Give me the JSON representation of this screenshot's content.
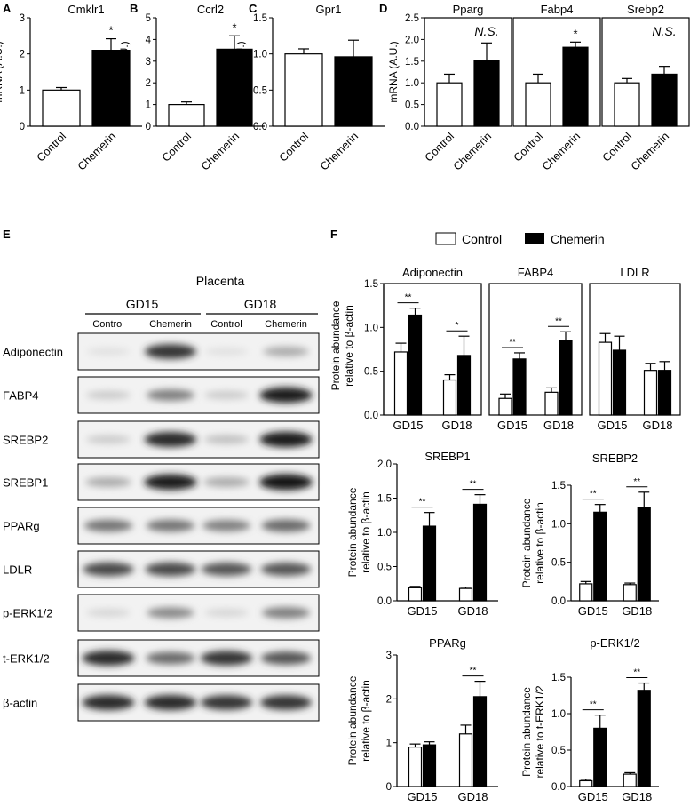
{
  "panel_letters": {
    "A": "A",
    "B": "B",
    "C": "C",
    "D": "D",
    "E": "E",
    "F": "F"
  },
  "colors": {
    "control": "#ffffff",
    "chemerin": "#000000",
    "axis": "#000000"
  },
  "legend": {
    "control": "Control",
    "chemerin": "Chemerin"
  },
  "blot": {
    "title": "Placenta",
    "groups": [
      "GD15",
      "GD18"
    ],
    "lanes": [
      "Control",
      "Chemerin",
      "Control",
      "Chemerin"
    ],
    "rows": [
      {
        "label": "Adiponectin",
        "bands": [
          0.05,
          0.85,
          0.05,
          0.3
        ]
      },
      {
        "label": "FABP4",
        "bands": [
          0.15,
          0.5,
          0.15,
          0.95
        ]
      },
      {
        "label": "SREBP2",
        "bands": [
          0.15,
          0.9,
          0.2,
          0.95
        ]
      },
      {
        "label": "SREBP1",
        "bands": [
          0.3,
          0.95,
          0.3,
          1.0
        ]
      },
      {
        "label": "PPARg",
        "bands": [
          0.55,
          0.55,
          0.5,
          0.6
        ]
      },
      {
        "label": "LDLR",
        "bands": [
          0.75,
          0.75,
          0.7,
          0.7
        ]
      },
      {
        "label": "p-ERK1/2",
        "bands": [
          0.1,
          0.45,
          0.1,
          0.5
        ]
      },
      {
        "label": "t-ERK1/2",
        "bands": [
          0.9,
          0.6,
          0.85,
          0.7
        ]
      },
      {
        "label": "β-actin",
        "bands": [
          0.9,
          0.9,
          0.85,
          0.85
        ]
      }
    ]
  },
  "chart_data": [
    {
      "id": "A",
      "type": "bar",
      "title": "Cmklr1",
      "ylabel": "mRNA (A.U.)",
      "ylim": [
        0,
        3
      ],
      "yticks": [
        0,
        1,
        2,
        3
      ],
      "categories": [
        "Control",
        "Chemerin"
      ],
      "values": [
        1.0,
        2.1
      ],
      "errors": [
        0.07,
        0.32
      ],
      "annotations": [
        "",
        "*"
      ]
    },
    {
      "id": "B",
      "type": "bar",
      "title": "Ccrl2",
      "ylabel": "mRNA (A.U.)",
      "ylim": [
        0,
        5
      ],
      "yticks": [
        0,
        1,
        2,
        3,
        4,
        5
      ],
      "categories": [
        "Control",
        "Chemerin"
      ],
      "values": [
        1.0,
        3.55
      ],
      "errors": [
        0.12,
        0.62
      ],
      "annotations": [
        "",
        "*"
      ]
    },
    {
      "id": "C",
      "type": "bar",
      "title": "Gpr1",
      "ylabel": "mRNA (A.U.)",
      "ylim": [
        0,
        1.5
      ],
      "yticks": [
        "0.0",
        "0.5",
        "1.0",
        "1.5"
      ],
      "categories": [
        "Control",
        "Chemerin"
      ],
      "values": [
        1.0,
        0.96
      ],
      "errors": [
        0.07,
        0.23
      ],
      "annotations": [
        "",
        ""
      ]
    },
    {
      "id": "D",
      "type": "bar",
      "ylabel": "mRNA (A.U.)",
      "ylim": [
        0,
        2.5
      ],
      "yticks": [
        "0.0",
        "0.5",
        "1.0",
        "1.5",
        "2.0",
        "2.5"
      ],
      "categories": [
        "Control",
        "Chemerin"
      ],
      "subplots": [
        {
          "title": "Pparg",
          "values": [
            1.0,
            1.52
          ],
          "errors": [
            0.2,
            0.4
          ],
          "annotation": "N.S."
        },
        {
          "title": "Fabp4",
          "values": [
            1.0,
            1.82
          ],
          "errors": [
            0.2,
            0.12
          ],
          "annotation": "*"
        },
        {
          "title": "Srebp2",
          "values": [
            1.0,
            1.2
          ],
          "errors": [
            0.1,
            0.18
          ],
          "annotation": "N.S."
        }
      ]
    },
    {
      "id": "F1",
      "type": "bar",
      "ylabel": "Protein abundance relative to β-actin",
      "ylim": [
        0,
        1.5
      ],
      "yticks": [
        "0.0",
        "0.5",
        "1.0",
        "1.5"
      ],
      "categories": [
        "GD15",
        "GD18"
      ],
      "subplots": [
        {
          "title": "Adiponectin",
          "control": [
            0.72,
            0.4
          ],
          "control_err": [
            0.1,
            0.06
          ],
          "chemerin": [
            1.14,
            0.68
          ],
          "chemerin_err": [
            0.08,
            0.22
          ],
          "sig": [
            "**",
            "*"
          ]
        },
        {
          "title": "FABP4",
          "control": [
            0.19,
            0.26
          ],
          "control_err": [
            0.05,
            0.05
          ],
          "chemerin": [
            0.64,
            0.85
          ],
          "chemerin_err": [
            0.07,
            0.1
          ],
          "sig": [
            "**",
            "**"
          ]
        },
        {
          "title": "LDLR",
          "control": [
            0.83,
            0.51
          ],
          "control_err": [
            0.1,
            0.08
          ],
          "chemerin": [
            0.74,
            0.51
          ],
          "chemerin_err": [
            0.16,
            0.1
          ],
          "sig": [
            "",
            ""
          ]
        }
      ]
    },
    {
      "id": "F2",
      "type": "bar",
      "title": "SREBP1",
      "ylabel": "Protein abundance relative to β-actin",
      "ylim": [
        0,
        2.0
      ],
      "yticks": [
        "0.0",
        "0.5",
        "1.0",
        "1.5",
        "2.0"
      ],
      "categories": [
        "GD15",
        "GD18"
      ],
      "control": [
        0.19,
        0.18
      ],
      "control_err": [
        0.02,
        0.02
      ],
      "chemerin": [
        1.09,
        1.41
      ],
      "chemerin_err": [
        0.2,
        0.14
      ],
      "sig": [
        "**",
        "**"
      ]
    },
    {
      "id": "F3",
      "type": "bar",
      "title": "SREBP2",
      "ylabel": "Protein abundance relative to β-actin",
      "ylim": [
        0,
        1.5
      ],
      "yticks": [
        "0.0",
        "0.5",
        "1.0",
        "1.5"
      ],
      "categories": [
        "GD15",
        "GD18"
      ],
      "control": [
        0.22,
        0.21
      ],
      "control_err": [
        0.03,
        0.02
      ],
      "chemerin": [
        1.15,
        1.21
      ],
      "chemerin_err": [
        0.1,
        0.2
      ],
      "sig": [
        "**",
        "**"
      ]
    },
    {
      "id": "F4",
      "type": "bar",
      "title": "PPARg",
      "ylabel": "Protein abundance relative to β-actin",
      "ylim": [
        0,
        3
      ],
      "yticks": [
        "0",
        "1",
        "2",
        "3"
      ],
      "categories": [
        "GD15",
        "GD18"
      ],
      "control": [
        0.9,
        1.2
      ],
      "control_err": [
        0.07,
        0.2
      ],
      "chemerin": [
        0.95,
        2.05
      ],
      "chemerin_err": [
        0.07,
        0.35
      ],
      "sig": [
        "",
        "**"
      ]
    },
    {
      "id": "F5",
      "type": "bar",
      "title": "p-ERK1/2",
      "ylabel": "Protein abundance relative to t-ERK1/2",
      "ylim": [
        0,
        1.5
      ],
      "yticks": [
        "0.0",
        "0.5",
        "1.0",
        "1.5"
      ],
      "categories": [
        "GD15",
        "GD18"
      ],
      "control": [
        0.08,
        0.17
      ],
      "control_err": [
        0.02,
        0.02
      ],
      "chemerin": [
        0.8,
        1.32
      ],
      "chemerin_err": [
        0.18,
        0.1
      ],
      "sig": [
        "**",
        "**"
      ]
    }
  ]
}
